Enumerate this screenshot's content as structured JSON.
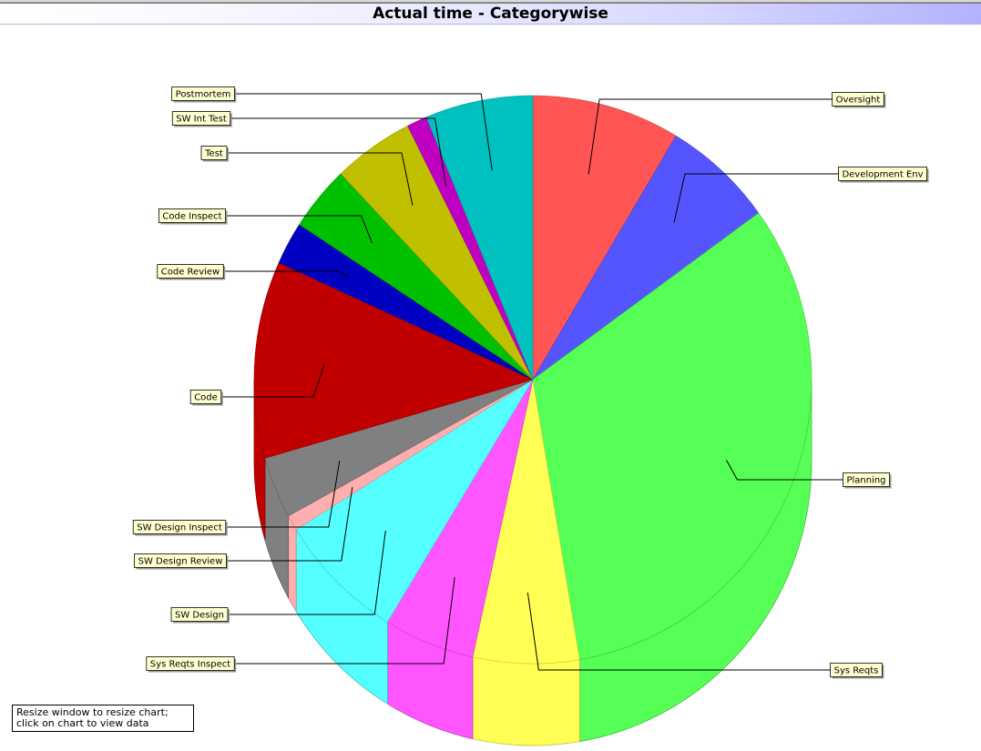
{
  "hint": "Resize window to resize chart; click on chart to view data",
  "chart_data": {
    "type": "pie",
    "title": "Actual time - Categorywise",
    "slices": [
      {
        "label": "Oversight",
        "value": 8.8,
        "color": "#ff5555"
      },
      {
        "label": "Development Env",
        "value": 6.6,
        "color": "#5555ff"
      },
      {
        "label": "Planning",
        "value": 33.1,
        "color": "#55ff55"
      },
      {
        "label": "Sys Reqts",
        "value": 6.3,
        "color": "#ffff55"
      },
      {
        "label": "Sys Reqts Inspect",
        "value": 5.4,
        "color": "#ff55ff"
      },
      {
        "label": "SW Design",
        "value": 7.6,
        "color": "#55ffff"
      },
      {
        "label": "SW Design Review",
        "value": 0.9,
        "color": "#ffafaf"
      },
      {
        "label": "SW Design Inspect",
        "value": 3.6,
        "color": "#808080"
      },
      {
        "label": "Code",
        "value": 11.5,
        "color": "#c00000"
      },
      {
        "label": "Code Review",
        "value": 2.5,
        "color": "#0000c0"
      },
      {
        "label": "Code Inspect",
        "value": 3.8,
        "color": "#00c000"
      },
      {
        "label": "Test",
        "value": 4.8,
        "color": "#c0c000"
      },
      {
        "label": "SW Int Test",
        "value": 1.2,
        "color": "#c000c0"
      },
      {
        "label": "Postmortem",
        "value": 6.4,
        "color": "#00c0c0"
      }
    ],
    "start_angle": "12 o'clock",
    "direction": "clockwise",
    "style": "3d-cylinder",
    "legend": "none",
    "labels": "callouts"
  }
}
